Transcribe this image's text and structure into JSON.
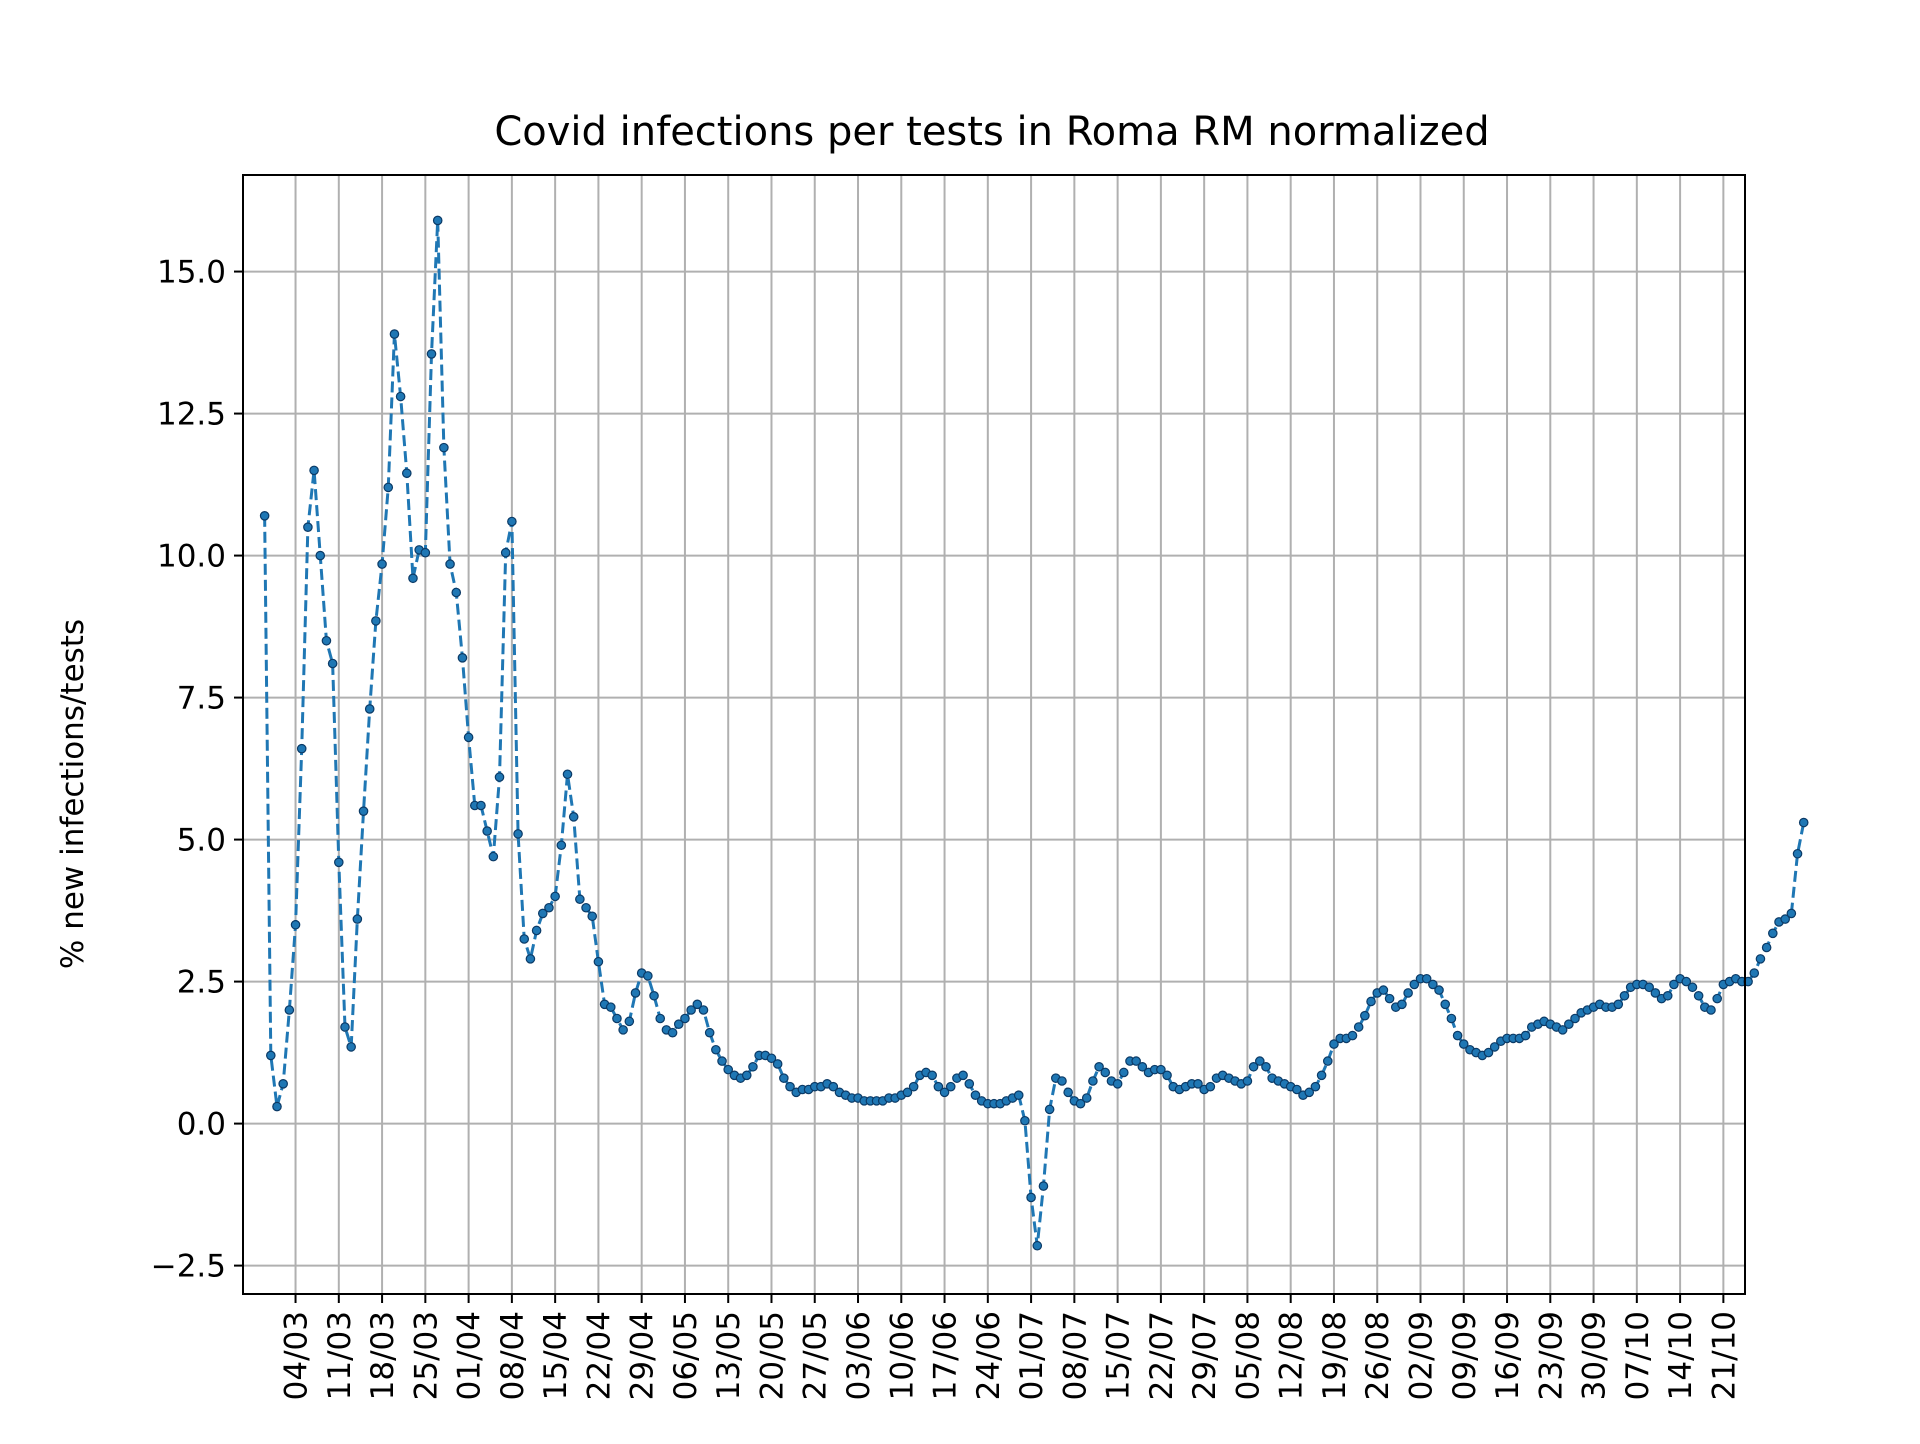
{
  "chart_data": {
    "type": "line",
    "title": "Covid infections per tests in Roma RM normalized",
    "xlabel": "",
    "ylabel": "% new infections/tests",
    "ylim": [
      -3.0,
      16.7
    ],
    "grid": true,
    "yticks": [
      "−2.5",
      "0.0",
      "2.5",
      "5.0",
      "7.5",
      "10.0",
      "12.5",
      "15.0"
    ],
    "ytick_values": [
      -2.5,
      0.0,
      2.5,
      5.0,
      7.5,
      10.0,
      12.5,
      15.0
    ],
    "xticks": [
      "04/03",
      "11/03",
      "18/03",
      "25/03",
      "01/04",
      "08/04",
      "15/04",
      "22/04",
      "29/04",
      "06/05",
      "13/05",
      "20/05",
      "27/05",
      "03/06",
      "10/06",
      "17/06",
      "24/06",
      "01/07",
      "08/07",
      "15/07",
      "22/07",
      "29/07",
      "05/08",
      "12/08",
      "19/08",
      "26/08",
      "02/09",
      "09/09",
      "16/09",
      "23/09",
      "30/09",
      "07/10",
      "14/10",
      "21/10"
    ],
    "x_start": "2020-02-28",
    "x_end": "2020-10-21",
    "series": [
      {
        "name": "",
        "color": "#1f77b4",
        "line_style": "dashed",
        "marker": "dot",
        "values": [
          10.7,
          1.2,
          0.3,
          0.7,
          2.0,
          3.5,
          6.6,
          10.5,
          11.5,
          10.0,
          8.5,
          8.1,
          4.6,
          1.7,
          1.35,
          3.6,
          5.5,
          7.3,
          8.85,
          9.85,
          11.2,
          13.9,
          12.8,
          11.45,
          9.6,
          10.1,
          10.05,
          13.55,
          15.9,
          11.9,
          9.85,
          9.35,
          8.2,
          6.8,
          5.6,
          5.6,
          5.15,
          4.7,
          6.1,
          10.05,
          10.6,
          5.1,
          3.25,
          2.9,
          3.4,
          3.7,
          3.8,
          4.0,
          4.9,
          6.15,
          5.4,
          3.95,
          3.8,
          3.65,
          2.85,
          2.1,
          2.05,
          1.85,
          1.65,
          1.8,
          2.3,
          2.65,
          2.6,
          2.25,
          1.85,
          1.65,
          1.6,
          1.75,
          1.85,
          2.0,
          2.1,
          2.0,
          1.6,
          1.3,
          1.1,
          0.95,
          0.85,
          0.8,
          0.85,
          1.0,
          1.2,
          1.2,
          1.15,
          1.05,
          0.8,
          0.65,
          0.55,
          0.6,
          0.6,
          0.65,
          0.65,
          0.7,
          0.65,
          0.55,
          0.5,
          0.45,
          0.45,
          0.4,
          0.4,
          0.4,
          0.4,
          0.45,
          0.45,
          0.5,
          0.55,
          0.65,
          0.85,
          0.9,
          0.85,
          0.65,
          0.55,
          0.65,
          0.8,
          0.85,
          0.7,
          0.5,
          0.4,
          0.35,
          0.35,
          0.35,
          0.4,
          0.45,
          0.5,
          0.05,
          -1.3,
          -2.15,
          -1.1,
          0.25,
          0.8,
          0.75,
          0.55,
          0.4,
          0.35,
          0.45,
          0.75,
          1.0,
          0.9,
          0.75,
          0.7,
          0.9,
          1.1,
          1.1,
          1.0,
          0.9,
          0.95,
          0.95,
          0.85,
          0.65,
          0.6,
          0.65,
          0.7,
          0.7,
          0.6,
          0.65,
          0.8,
          0.85,
          0.8,
          0.75,
          0.7,
          0.75,
          1.0,
          1.1,
          1.0,
          0.8,
          0.75,
          0.7,
          0.65,
          0.6,
          0.5,
          0.55,
          0.65,
          0.85,
          1.1,
          1.4,
          1.5,
          1.5,
          1.55,
          1.7,
          1.9,
          2.15,
          2.3,
          2.35,
          2.2,
          2.05,
          2.1,
          2.3,
          2.45,
          2.55,
          2.55,
          2.45,
          2.35,
          2.1,
          1.85,
          1.55,
          1.4,
          1.3,
          1.25,
          1.2,
          1.25,
          1.35,
          1.45,
          1.5,
          1.5,
          1.5,
          1.55,
          1.7,
          1.75,
          1.8,
          1.75,
          1.7,
          1.65,
          1.75,
          1.85,
          1.95,
          2.0,
          2.05,
          2.1,
          2.05,
          2.05,
          2.1,
          2.25,
          2.4,
          2.45,
          2.45,
          2.4,
          2.3,
          2.2,
          2.25,
          2.45,
          2.55,
          2.5,
          2.4,
          2.25,
          2.05,
          2.0,
          2.2,
          2.45,
          2.5,
          2.55,
          2.5,
          2.5,
          2.65,
          2.9,
          3.1,
          3.35,
          3.55,
          3.6,
          3.7,
          4.75,
          5.3
        ]
      }
    ]
  }
}
